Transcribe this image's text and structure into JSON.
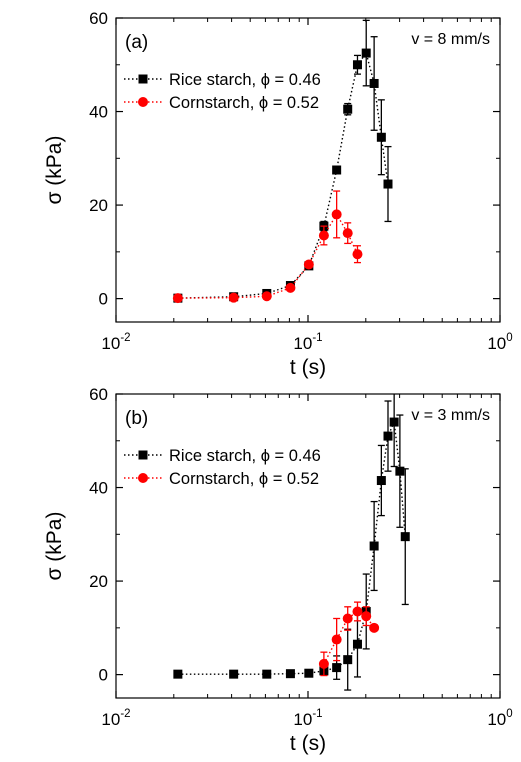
{
  "chart_data": [
    {
      "type": "scatter",
      "panel_label": "(a)",
      "annotation": "v = 8 mm/s",
      "xlabel": "t (s)",
      "ylabel": "σ (kPa)",
      "xscale": "log",
      "xlim": [
        0.01,
        1
      ],
      "ylim": [
        -5,
        60
      ],
      "xticks": [
        0.01,
        0.1,
        1
      ],
      "xtick_labels": [
        {
          "base": "10",
          "exp": "-2"
        },
        {
          "base": "10",
          "exp": "-1"
        },
        {
          "base": "10",
          "exp": "0"
        }
      ],
      "yticks": [
        0,
        20,
        40,
        60
      ],
      "ytick_labels": [
        "0",
        "20",
        "40",
        "60"
      ],
      "legend_position": "upper-left",
      "series": [
        {
          "name": "Rice starch, ϕ = 0.46",
          "color": "#000000",
          "marker": "square",
          "line": "dotted",
          "points": [
            {
              "x": 0.021,
              "y": 0.1,
              "err": 0
            },
            {
              "x": 0.041,
              "y": 0.4,
              "err": 0
            },
            {
              "x": 0.061,
              "y": 1.1,
              "err": 0
            },
            {
              "x": 0.081,
              "y": 2.8,
              "err": 0
            },
            {
              "x": 0.101,
              "y": 7.0,
              "err": 0.6
            },
            {
              "x": 0.121,
              "y": 15.5,
              "err": 1.0
            },
            {
              "x": 0.141,
              "y": 27.5,
              "err": 0
            },
            {
              "x": 0.161,
              "y": 40.5,
              "err": 1.2
            },
            {
              "x": 0.181,
              "y": 50.0,
              "err": 2.0
            },
            {
              "x": 0.201,
              "y": 52.5,
              "err": 7.0
            },
            {
              "x": 0.221,
              "y": 46.0,
              "err": 10.0
            },
            {
              "x": 0.241,
              "y": 34.5,
              "err": 8.0
            },
            {
              "x": 0.261,
              "y": 24.5,
              "err": 8.0
            }
          ]
        },
        {
          "name": "Cornstarch, ϕ = 0.52",
          "color": "#ff0000",
          "marker": "circle",
          "line": "dotted",
          "points": [
            {
              "x": 0.021,
              "y": 0.1,
              "err": 0
            },
            {
              "x": 0.041,
              "y": 0.2,
              "err": 0
            },
            {
              "x": 0.061,
              "y": 0.5,
              "err": 0
            },
            {
              "x": 0.081,
              "y": 2.3,
              "err": 0
            },
            {
              "x": 0.101,
              "y": 7.3,
              "err": 0.6
            },
            {
              "x": 0.121,
              "y": 13.5,
              "err": 2.0
            },
            {
              "x": 0.141,
              "y": 18.0,
              "err": 5.0
            },
            {
              "x": 0.161,
              "y": 14.0,
              "err": 2.2
            },
            {
              "x": 0.181,
              "y": 9.5,
              "err": 1.8
            }
          ]
        }
      ]
    },
    {
      "type": "scatter",
      "panel_label": "(b)",
      "annotation": "v = 3 mm/s",
      "xlabel": "t (s)",
      "ylabel": "σ (kPa)",
      "xscale": "log",
      "xlim": [
        0.01,
        1
      ],
      "ylim": [
        -5,
        60
      ],
      "xticks": [
        0.01,
        0.1,
        1
      ],
      "xtick_labels": [
        {
          "base": "10",
          "exp": "-2"
        },
        {
          "base": "10",
          "exp": "-1"
        },
        {
          "base": "10",
          "exp": "0"
        }
      ],
      "yticks": [
        0,
        20,
        40,
        60
      ],
      "ytick_labels": [
        "0",
        "20",
        "40",
        "60"
      ],
      "legend_position": "upper-left",
      "series": [
        {
          "name": "Rice starch, ϕ = 0.46",
          "color": "#000000",
          "marker": "square",
          "line": "dotted",
          "points": [
            {
              "x": 0.021,
              "y": 0.1,
              "err": 0
            },
            {
              "x": 0.041,
              "y": 0.1,
              "err": 0
            },
            {
              "x": 0.061,
              "y": 0.1,
              "err": 0
            },
            {
              "x": 0.081,
              "y": 0.2,
              "err": 0
            },
            {
              "x": 0.101,
              "y": 0.3,
              "err": 0
            },
            {
              "x": 0.121,
              "y": 0.8,
              "err": 0.8
            },
            {
              "x": 0.141,
              "y": 1.5,
              "err": 2.5
            },
            {
              "x": 0.161,
              "y": 3.2,
              "err": 6.5
            },
            {
              "x": 0.181,
              "y": 6.5,
              "err": 7.0
            },
            {
              "x": 0.201,
              "y": 13.5,
              "err": 8.0
            },
            {
              "x": 0.221,
              "y": 27.5,
              "err": 9.5
            },
            {
              "x": 0.241,
              "y": 41.5,
              "err": 7.5
            },
            {
              "x": 0.261,
              "y": 51.0,
              "err": 7.5
            },
            {
              "x": 0.281,
              "y": 54.0,
              "err": 9.5
            },
            {
              "x": 0.301,
              "y": 43.5,
              "err": 12.0
            },
            {
              "x": 0.321,
              "y": 29.5,
              "err": 14.5
            }
          ]
        },
        {
          "name": "Cornstarch, ϕ = 0.52",
          "color": "#ff0000",
          "marker": "circle",
          "line": "dotted",
          "points": [
            {
              "x": 0.121,
              "y": 2.3,
              "err": 2.5
            },
            {
              "x": 0.141,
              "y": 7.5,
              "err": 4.5
            },
            {
              "x": 0.161,
              "y": 12.0,
              "err": 2.5
            },
            {
              "x": 0.181,
              "y": 13.5,
              "err": 2.0
            },
            {
              "x": 0.201,
              "y": 12.5,
              "err": 2.0
            },
            {
              "x": 0.221,
              "y": 10.0,
              "err": 0
            }
          ]
        }
      ]
    }
  ]
}
